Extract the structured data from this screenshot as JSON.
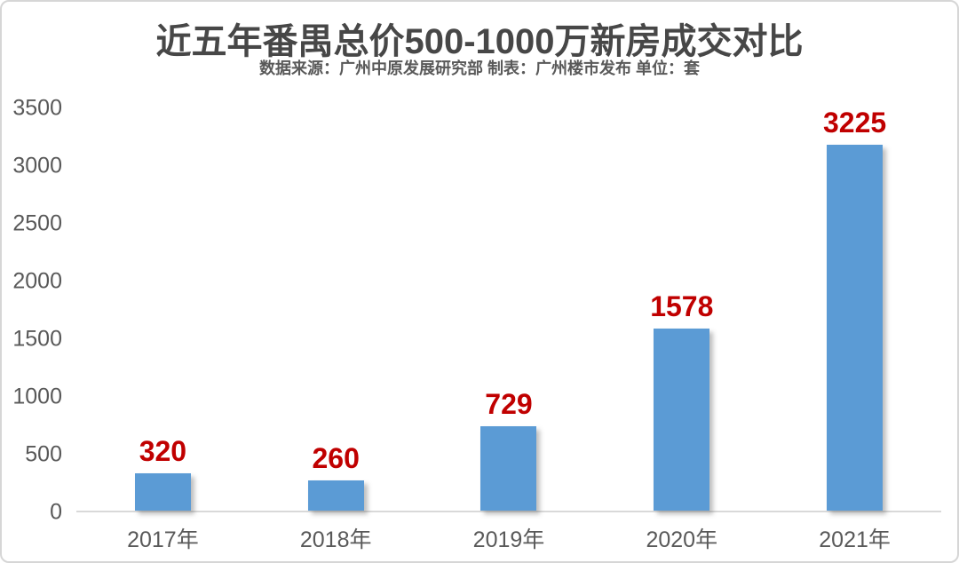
{
  "card": {
    "background": "#ffffff",
    "border_color": "#d6d6d6"
  },
  "chart_data": {
    "type": "bar",
    "title": "近五年番禺总价500-1000万新房成交对比",
    "subtitle": "数据来源：广州中原发展研究部 制表：广州楼市发布 单位：套",
    "categories": [
      "2017年",
      "2018年",
      "2019年",
      "2020年",
      "2021年"
    ],
    "values": [
      320,
      260,
      729,
      1578,
      3225
    ],
    "ylim": [
      0,
      3500
    ],
    "ytick_step": 500,
    "yticks": [
      0,
      500,
      1000,
      1500,
      2000,
      2500,
      3000,
      3500
    ],
    "grid": false,
    "legend_position": "none",
    "unit": "套",
    "colors": {
      "bar": "#5b9bd5",
      "value_label": "#c00000",
      "title": "#474747",
      "subtitle": "#595959",
      "axis_text": "#595959",
      "baseline": "#d9d9d9"
    }
  }
}
